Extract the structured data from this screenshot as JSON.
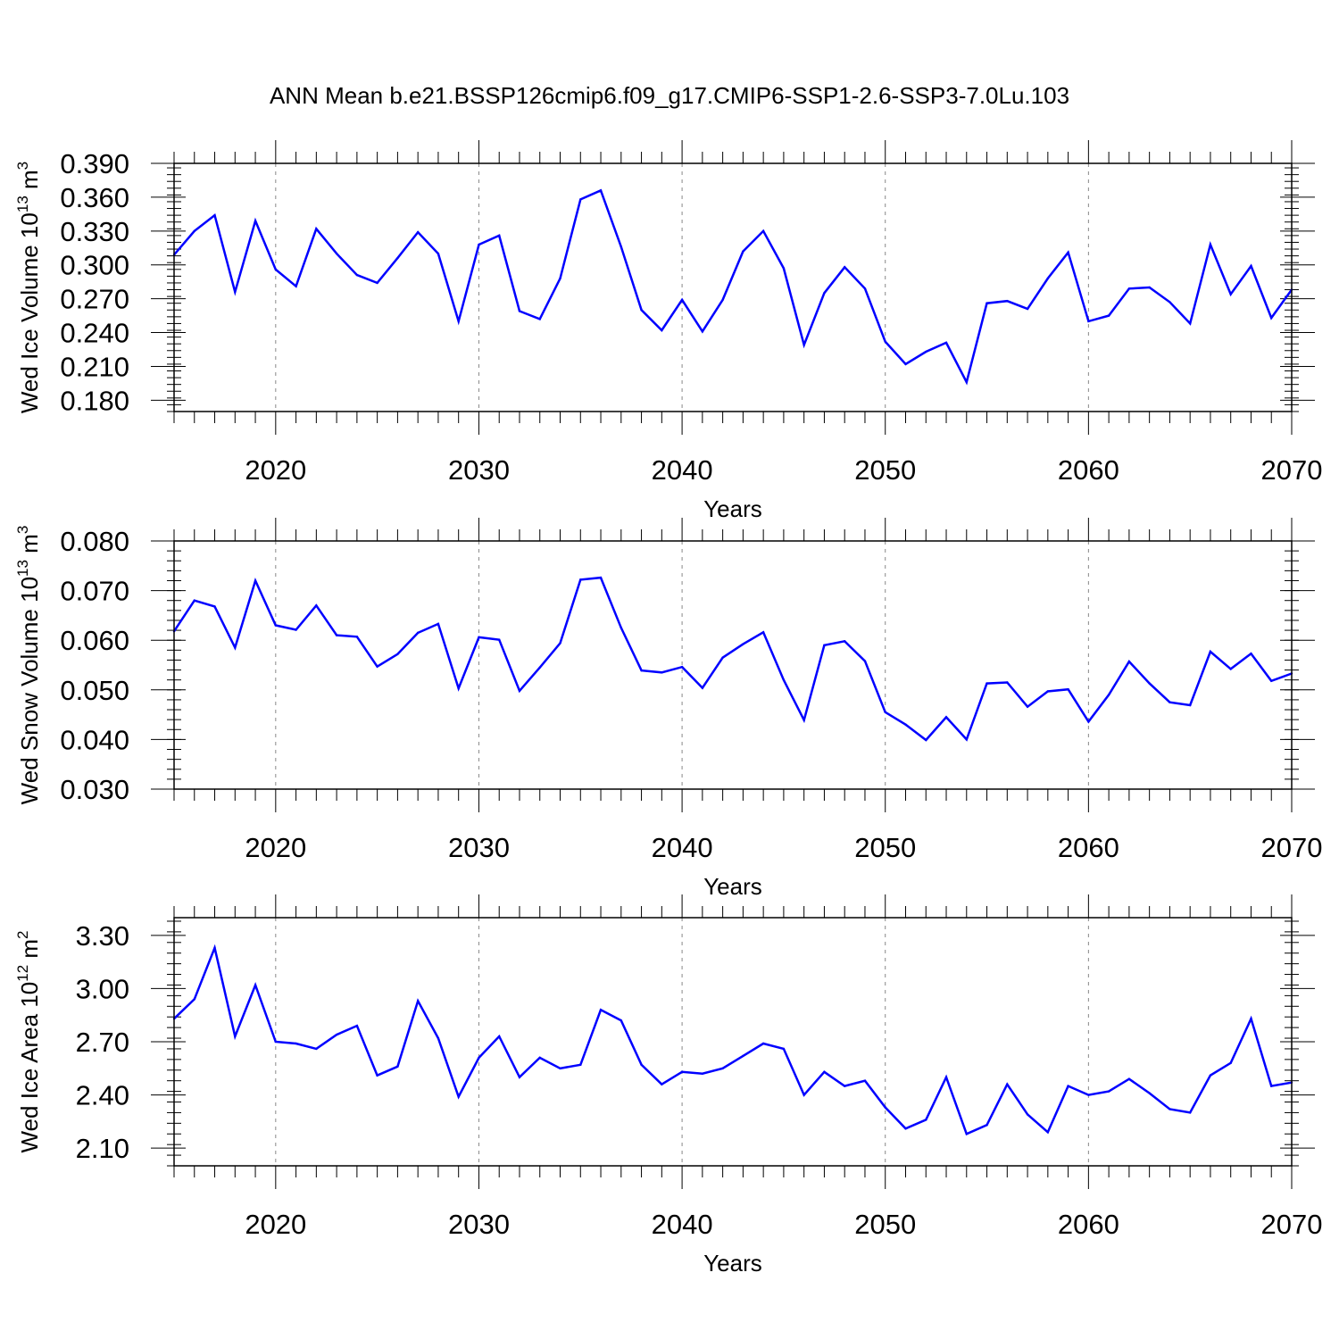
{
  "title": "ANN Mean b.e21.BSSP126cmip6.f09_g17.CMIP6-SSP1-2.6-SSP3-7.0Lu.103",
  "chart_data": [
    {
      "type": "line",
      "ylabel": "Wed Ice Volume",
      "ylabel_unit_base": "10",
      "ylabel_unit_exp": "13",
      "ylabel_unit_rest": "m",
      "ylabel_unit_pow": "3",
      "xlabel": "Years",
      "xlim": [
        2015,
        2070
      ],
      "ylim": [
        0.17,
        0.39
      ],
      "xticks": [
        "2020",
        "2030",
        "2040",
        "2050",
        "2060",
        "2070"
      ],
      "yticks": [
        "0.180",
        "0.210",
        "0.240",
        "0.270",
        "0.300",
        "0.330",
        "0.360",
        "0.390"
      ],
      "grid": "vertical dashed at major x ticks",
      "color": "#0000ff",
      "x": [
        2015,
        2016,
        2017,
        2018,
        2019,
        2020,
        2021,
        2022,
        2023,
        2024,
        2025,
        2026,
        2027,
        2028,
        2029,
        2030,
        2031,
        2032,
        2033,
        2034,
        2035,
        2036,
        2037,
        2038,
        2039,
        2040,
        2041,
        2042,
        2043,
        2044,
        2045,
        2046,
        2047,
        2048,
        2049,
        2050,
        2051,
        2052,
        2053,
        2054,
        2055,
        2056,
        2057,
        2058,
        2059,
        2060,
        2061,
        2062,
        2063,
        2064,
        2065,
        2066,
        2067,
        2068,
        2069,
        2070
      ],
      "y": [
        0.309,
        0.33,
        0.344,
        0.276,
        0.339,
        0.296,
        0.281,
        0.332,
        0.31,
        0.291,
        0.284,
        0.306,
        0.329,
        0.31,
        0.25,
        0.318,
        0.326,
        0.259,
        0.252,
        0.288,
        0.358,
        0.366,
        0.316,
        0.26,
        0.242,
        0.269,
        0.241,
        0.269,
        0.312,
        0.33,
        0.297,
        0.229,
        0.275,
        0.298,
        0.279,
        0.232,
        0.212,
        0.223,
        0.231,
        0.196,
        0.266,
        0.268,
        0.261,
        0.288,
        0.311,
        0.25,
        0.255,
        0.279,
        0.28,
        0.267,
        0.248,
        0.318,
        0.274,
        0.299,
        0.253,
        0.278
      ]
    },
    {
      "type": "line",
      "ylabel": "Wed Snow Volume",
      "ylabel_unit_base": "10",
      "ylabel_unit_exp": "13",
      "ylabel_unit_rest": "m",
      "ylabel_unit_pow": "3",
      "xlabel": "Years",
      "xlim": [
        2015,
        2070
      ],
      "ylim": [
        0.03,
        0.08
      ],
      "xticks": [
        "2020",
        "2030",
        "2040",
        "2050",
        "2060",
        "2070"
      ],
      "yticks": [
        "0.030",
        "0.040",
        "0.050",
        "0.060",
        "0.070",
        "0.080"
      ],
      "grid": "vertical dashed at major x ticks",
      "color": "#0000ff",
      "x": [
        2015,
        2016,
        2017,
        2018,
        2019,
        2020,
        2021,
        2022,
        2023,
        2024,
        2025,
        2026,
        2027,
        2028,
        2029,
        2030,
        2031,
        2032,
        2033,
        2034,
        2035,
        2036,
        2037,
        2038,
        2039,
        2040,
        2041,
        2042,
        2043,
        2044,
        2045,
        2046,
        2047,
        2048,
        2049,
        2050,
        2051,
        2052,
        2053,
        2054,
        2055,
        2056,
        2057,
        2058,
        2059,
        2060,
        2061,
        2062,
        2063,
        2064,
        2065,
        2066,
        2067,
        2068,
        2069,
        2070
      ],
      "y": [
        0.0618,
        0.068,
        0.0668,
        0.0585,
        0.072,
        0.063,
        0.0621,
        0.067,
        0.061,
        0.0607,
        0.0547,
        0.0572,
        0.0615,
        0.0633,
        0.0503,
        0.0606,
        0.0601,
        0.0498,
        0.0545,
        0.0594,
        0.0722,
        0.0726,
        0.0625,
        0.0539,
        0.0535,
        0.0546,
        0.0504,
        0.0565,
        0.0592,
        0.0616,
        0.052,
        0.0439,
        0.059,
        0.0598,
        0.0558,
        0.0455,
        0.043,
        0.0399,
        0.0445,
        0.04,
        0.0513,
        0.0515,
        0.0466,
        0.0497,
        0.0501,
        0.0436,
        0.049,
        0.0557,
        0.0513,
        0.0475,
        0.0469,
        0.0577,
        0.0542,
        0.0573,
        0.0518,
        0.0533
      ]
    },
    {
      "type": "line",
      "ylabel": "Wed Ice Area",
      "ylabel_unit_base": "10",
      "ylabel_unit_exp": "12",
      "ylabel_unit_rest": "m",
      "ylabel_unit_pow": "2",
      "xlabel": "Years",
      "xlim": [
        2015,
        2070
      ],
      "ylim": [
        2.0,
        3.4
      ],
      "xticks": [
        "2020",
        "2030",
        "2040",
        "2050",
        "2060",
        "2070"
      ],
      "yticks": [
        "2.10",
        "2.40",
        "2.70",
        "3.00",
        "3.30"
      ],
      "grid": "vertical dashed at major x ticks",
      "color": "#0000ff",
      "x": [
        2015,
        2016,
        2017,
        2018,
        2019,
        2020,
        2021,
        2022,
        2023,
        2024,
        2025,
        2026,
        2027,
        2028,
        2029,
        2030,
        2031,
        2032,
        2033,
        2034,
        2035,
        2036,
        2037,
        2038,
        2039,
        2040,
        2041,
        2042,
        2043,
        2044,
        2045,
        2046,
        2047,
        2048,
        2049,
        2050,
        2051,
        2052,
        2053,
        2054,
        2055,
        2056,
        2057,
        2058,
        2059,
        2060,
        2061,
        2062,
        2063,
        2064,
        2065,
        2066,
        2067,
        2068,
        2069,
        2070
      ],
      "y": [
        2.83,
        2.94,
        3.23,
        2.73,
        3.02,
        2.7,
        2.69,
        2.66,
        2.74,
        2.79,
        2.51,
        2.56,
        2.93,
        2.72,
        2.39,
        2.61,
        2.73,
        2.5,
        2.61,
        2.55,
        2.57,
        2.88,
        2.82,
        2.57,
        2.46,
        2.53,
        2.52,
        2.55,
        2.62,
        2.69,
        2.66,
        2.4,
        2.53,
        2.45,
        2.48,
        2.33,
        2.21,
        2.26,
        2.5,
        2.18,
        2.23,
        2.46,
        2.29,
        2.19,
        2.45,
        2.4,
        2.42,
        2.49,
        2.41,
        2.32,
        2.3,
        2.51,
        2.58,
        2.83,
        2.45,
        2.47
      ]
    }
  ]
}
